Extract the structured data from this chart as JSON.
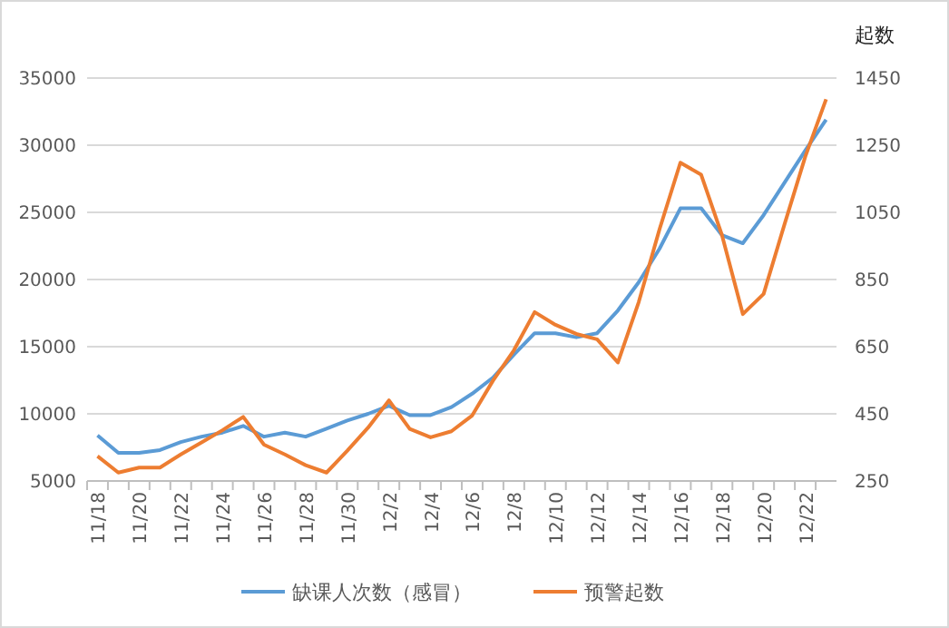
{
  "chart_data": {
    "type": "line",
    "y2label": "起数",
    "categories": [
      "11/18",
      null,
      "11/20",
      null,
      "11/22",
      null,
      "11/24",
      null,
      "11/26",
      null,
      "11/28",
      null,
      "11/30",
      null,
      "12/2",
      null,
      "12/4",
      null,
      "12/6",
      null,
      "12/8",
      null,
      "12/10",
      null,
      "12/12",
      null,
      "12/14",
      null,
      "12/16",
      null,
      "12/18",
      null,
      "12/20",
      null,
      "12/22",
      null
    ],
    "series": [
      {
        "name": "缺课人次数（感冒）",
        "color": "#5b9bd5",
        "values": [
          8400,
          7100,
          7100,
          7300,
          7900,
          8300,
          8600,
          9100,
          8300,
          8600,
          8300,
          8900,
          9500,
          10000,
          10600,
          9900,
          9900,
          10500,
          11500,
          12700,
          14400,
          16000,
          16000,
          15700,
          16000,
          17700,
          19800,
          22300,
          25300,
          25300,
          23300,
          22700,
          24800,
          27200,
          29600,
          31900
        ]
      },
      {
        "name": "预警起数",
        "color": "#ed7d31",
        "axis": "y2",
        "values": [
          324,
          275,
          290,
          290,
          329,
          365,
          401,
          441,
          358,
          329,
          297,
          275,
          340,
          409,
          490,
          405,
          380,
          398,
          445,
          549,
          639,
          753,
          715,
          688,
          672,
          603,
          783,
          1000,
          1198,
          1162,
          982,
          747,
          807,
          1014,
          1216,
          1387
        ]
      }
    ],
    "ylim": [
      5000,
      35000
    ],
    "yticks": [
      5000,
      10000,
      15000,
      20000,
      25000,
      30000,
      35000
    ],
    "y2lim": [
      250,
      1450
    ],
    "y2ticks": [
      250,
      450,
      650,
      850,
      1050,
      1250,
      1450
    ],
    "grid": "y",
    "legend": "bottom",
    "marker": "none",
    "line_style": "solid"
  }
}
